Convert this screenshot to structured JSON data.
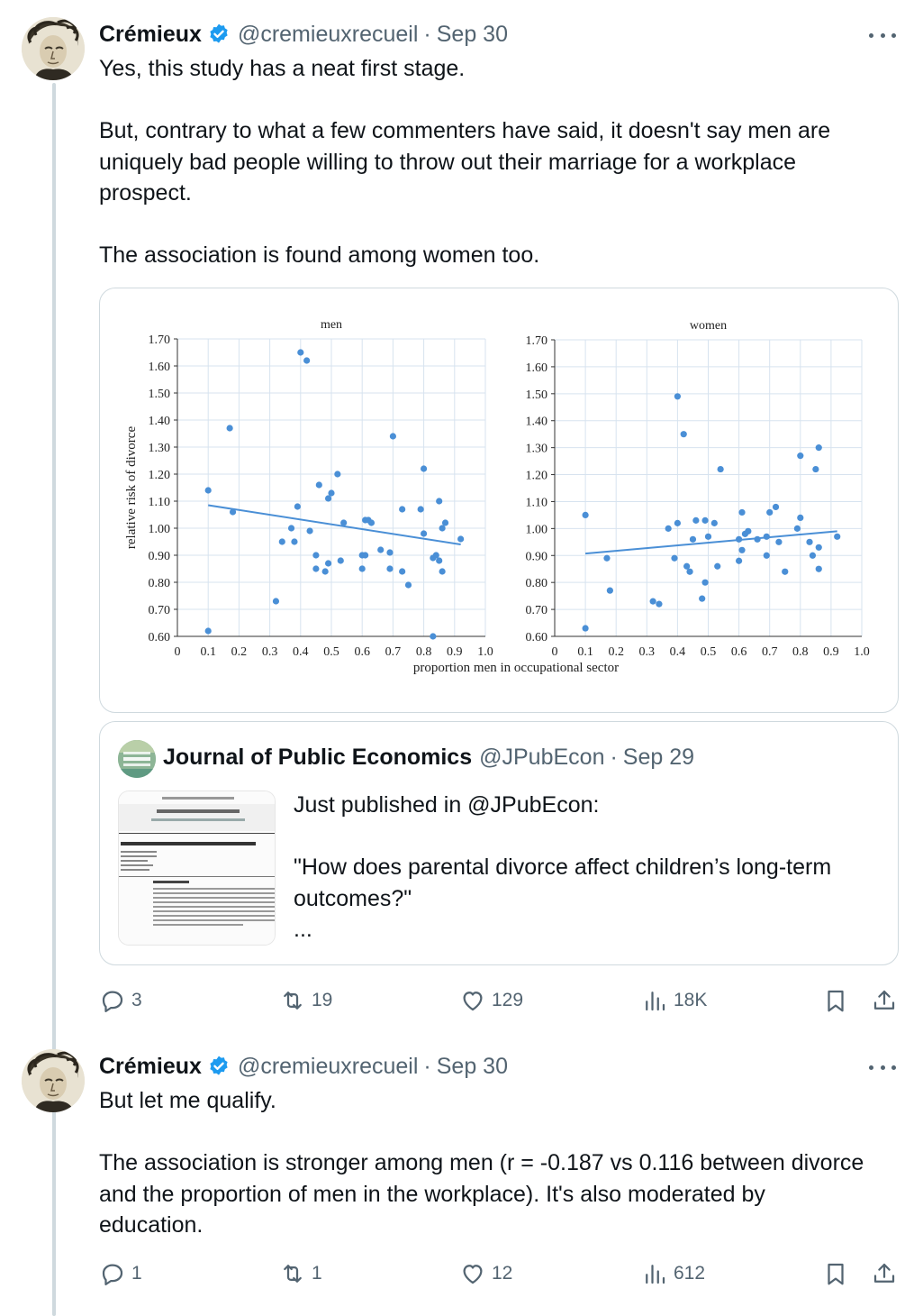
{
  "tweets": [
    {
      "author": {
        "name": "Crémieux",
        "handle": "@cremieuxrecueil",
        "date": "Sep 30",
        "verified": true
      },
      "text": [
        "Yes, this study has a neat first stage.",
        "",
        "But, contrary to what a few commenters have said, it doesn't say men are",
        "uniquely bad people willing to throw out their marriage for a workplace",
        "prospect.",
        "",
        "The association is found among women too."
      ],
      "quoted": {
        "author": {
          "name": "Journal of Public Economics",
          "handle": "@JPubEcon",
          "date": "Sep 29"
        },
        "text": [
          "Just published in @JPubEcon:",
          "",
          "\"How does parental divorce affect children’s long-term",
          "outcomes?\"",
          "..."
        ]
      },
      "actions": {
        "replies": "3",
        "reposts": "19",
        "likes": "129",
        "views": "18K"
      }
    },
    {
      "author": {
        "name": "Crémieux",
        "handle": "@cremieuxrecueil",
        "date": "Sep 30",
        "verified": true
      },
      "text": [
        "But let me qualify.",
        "",
        "The association is stronger among men (r = -0.187 vs 0.116 between divorce",
        "and the proportion of men in the workplace). It's also moderated by",
        "education."
      ],
      "actions": {
        "replies": "1",
        "reposts": "1",
        "likes": "12",
        "views": "612"
      }
    }
  ],
  "icons": {
    "verified": "verified-badge-icon",
    "more": "more-horizontal-icon",
    "reply": "reply-icon",
    "repost": "repost-icon",
    "like": "heart-icon",
    "views": "views-icon",
    "bookmark": "bookmark-icon",
    "share": "share-icon"
  },
  "colors": {
    "accent": "#1d9bf0",
    "muted": "#536471",
    "border": "#cfd9de",
    "point": "#4a8fd6"
  },
  "chart_data": [
    {
      "type": "scatter",
      "title": "men",
      "xlabel": "proportion men in occupational sector",
      "ylabel": "relative risk of divorce",
      "xlim": [
        0,
        1.0
      ],
      "ylim": [
        0.6,
        1.7
      ],
      "xticks": [
        "0",
        "0.1",
        "0.2",
        "0.3",
        "0.4",
        "0.5",
        "0.6",
        "0.7",
        "0.8",
        "0.9",
        "1.0"
      ],
      "yticks": [
        "0.60",
        "0.70",
        "0.80",
        "0.90",
        "1.00",
        "1.10",
        "1.20",
        "1.30",
        "1.40",
        "1.50",
        "1.60",
        "1.70"
      ],
      "grid": true,
      "points": [
        [
          0.1,
          0.62
        ],
        [
          0.1,
          1.14
        ],
        [
          0.17,
          1.37
        ],
        [
          0.18,
          1.06
        ],
        [
          0.32,
          0.73
        ],
        [
          0.34,
          0.95
        ],
        [
          0.37,
          1.0
        ],
        [
          0.38,
          0.95
        ],
        [
          0.39,
          1.08
        ],
        [
          0.4,
          1.65
        ],
        [
          0.42,
          1.62
        ],
        [
          0.43,
          0.99
        ],
        [
          0.45,
          0.9
        ],
        [
          0.45,
          0.85
        ],
        [
          0.46,
          1.16
        ],
        [
          0.48,
          0.84
        ],
        [
          0.49,
          0.87
        ],
        [
          0.49,
          1.11
        ],
        [
          0.5,
          1.13
        ],
        [
          0.52,
          1.2
        ],
        [
          0.53,
          0.88
        ],
        [
          0.54,
          1.02
        ],
        [
          0.6,
          0.9
        ],
        [
          0.6,
          0.85
        ],
        [
          0.61,
          1.03
        ],
        [
          0.61,
          0.9
        ],
        [
          0.62,
          1.03
        ],
        [
          0.63,
          1.02
        ],
        [
          0.66,
          0.92
        ],
        [
          0.69,
          0.91
        ],
        [
          0.69,
          0.85
        ],
        [
          0.7,
          1.34
        ],
        [
          0.73,
          1.07
        ],
        [
          0.73,
          0.84
        ],
        [
          0.75,
          0.79
        ],
        [
          0.79,
          1.07
        ],
        [
          0.8,
          1.22
        ],
        [
          0.8,
          0.98
        ],
        [
          0.83,
          0.89
        ],
        [
          0.83,
          0.6
        ],
        [
          0.84,
          0.9
        ],
        [
          0.85,
          1.1
        ],
        [
          0.85,
          0.88
        ],
        [
          0.86,
          1.0
        ],
        [
          0.86,
          0.84
        ],
        [
          0.87,
          1.02
        ],
        [
          0.92,
          0.96
        ]
      ],
      "trend": [
        [
          0.1,
          1.085
        ],
        [
          0.92,
          0.94
        ]
      ]
    },
    {
      "type": "scatter",
      "title": "women",
      "xlabel": "",
      "ylabel": "",
      "xlim": [
        0,
        1.0
      ],
      "ylim": [
        0.6,
        1.7
      ],
      "xticks": [
        "0",
        "0.1",
        "0.2",
        "0.3",
        "0.4",
        "0.5",
        "0.6",
        "0.7",
        "0.8",
        "0.9",
        "1.0"
      ],
      "yticks": [
        "0.60",
        "0.70",
        "0.80",
        "0.90",
        "1.00",
        "1.10",
        "1.20",
        "1.30",
        "1.40",
        "1.50",
        "1.60",
        "1.70"
      ],
      "grid": true,
      "points": [
        [
          0.1,
          0.63
        ],
        [
          0.1,
          1.05
        ],
        [
          0.17,
          0.89
        ],
        [
          0.18,
          0.77
        ],
        [
          0.32,
          0.73
        ],
        [
          0.34,
          0.72
        ],
        [
          0.37,
          1.0
        ],
        [
          0.39,
          0.89
        ],
        [
          0.4,
          1.02
        ],
        [
          0.4,
          1.49
        ],
        [
          0.42,
          1.35
        ],
        [
          0.43,
          0.86
        ],
        [
          0.44,
          0.84
        ],
        [
          0.45,
          0.96
        ],
        [
          0.46,
          1.03
        ],
        [
          0.48,
          0.74
        ],
        [
          0.49,
          0.8
        ],
        [
          0.49,
          1.03
        ],
        [
          0.5,
          0.97
        ],
        [
          0.52,
          1.02
        ],
        [
          0.53,
          0.86
        ],
        [
          0.54,
          1.22
        ],
        [
          0.6,
          0.96
        ],
        [
          0.6,
          0.88
        ],
        [
          0.61,
          1.06
        ],
        [
          0.61,
          0.92
        ],
        [
          0.62,
          0.98
        ],
        [
          0.63,
          0.99
        ],
        [
          0.66,
          0.96
        ],
        [
          0.69,
          0.97
        ],
        [
          0.69,
          0.9
        ],
        [
          0.7,
          1.06
        ],
        [
          0.72,
          1.08
        ],
        [
          0.73,
          0.95
        ],
        [
          0.75,
          0.84
        ],
        [
          0.79,
          1.0
        ],
        [
          0.8,
          1.27
        ],
        [
          0.8,
          1.04
        ],
        [
          0.83,
          0.95
        ],
        [
          0.84,
          0.9
        ],
        [
          0.85,
          1.22
        ],
        [
          0.86,
          0.93
        ],
        [
          0.86,
          1.3
        ],
        [
          0.86,
          0.85
        ],
        [
          0.92,
          0.97
        ]
      ],
      "trend": [
        [
          0.1,
          0.907
        ],
        [
          0.92,
          0.99
        ]
      ]
    }
  ]
}
